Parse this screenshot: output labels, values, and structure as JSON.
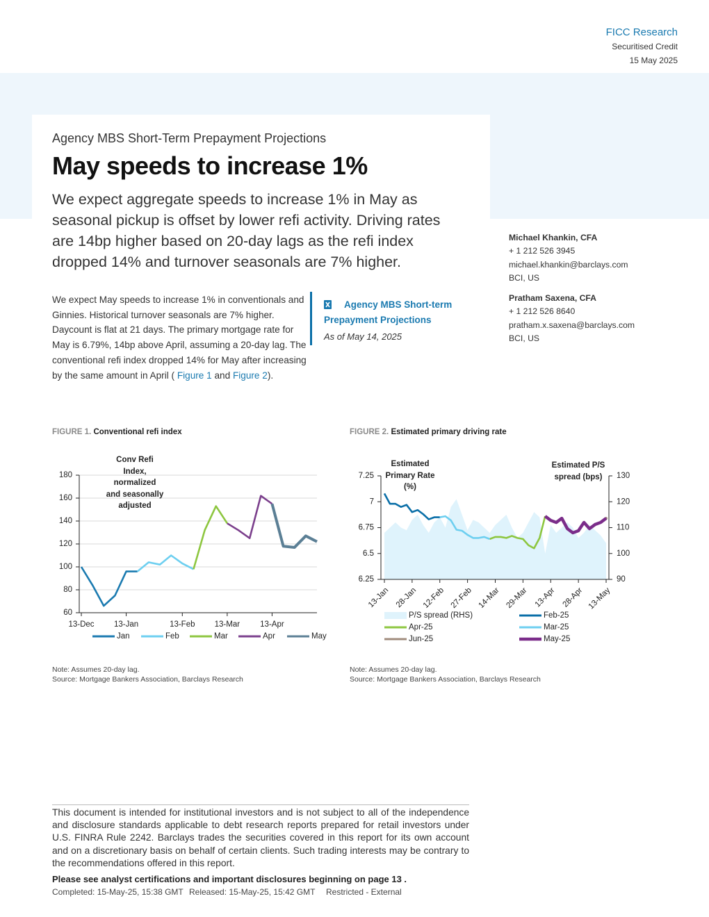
{
  "header": {
    "brand": "FICC Research",
    "section": "Securitised Credit",
    "date": "15 May 2025"
  },
  "article": {
    "kicker": "Agency MBS Short-Term Prepayment Projections",
    "title": "May speeds to increase 1%",
    "summary": "We expect aggregate speeds to increase 1% in May as seasonal pickup is offset by lower refi activity. Driving rates are 14bp higher based on 20-day lags as the refi index dropped 14% and turnover seasonals are 7% higher.",
    "body": [
      "We expect May speeds to increase 1% in conventionals and Ginnies. Historical turnover seasonals are 7% higher. Daycount is flat at 21 days. The primary mortgage rate for May is 6.79%, 14bp above April, assuming a 20-day lag. The conventional refi index dropped 14% for May after increasing by the same amount in April ( ",
      "Figure 1",
      " and ",
      "Figure 2",
      ")."
    ]
  },
  "sidebar": {
    "link": "Agency MBS Short-term Prepayment Projections",
    "as_of": "As of May 14, 2025"
  },
  "authors": [
    {
      "name": "Michael Khankin, CFA",
      "phone": "+ 1 212 526 3945",
      "email": "michael.khankin@barclays.com",
      "entity": "BCI, US"
    },
    {
      "name": "Pratham Saxena, CFA",
      "phone": "+ 1 212 526 8640",
      "email": "pratham.x.saxena@barclays.com",
      "entity": "BCI, US"
    }
  ],
  "chart_data": [
    {
      "type": "line",
      "figure": "FIGURE 1.",
      "title": "Conventional refi index",
      "annotation": "Conv Refi Index, normalized and seasonally adjusted",
      "categories": [
        "13-Dec",
        null,
        null,
        null,
        "13-Jan",
        null,
        null,
        null,
        null,
        "13-Feb",
        null,
        null,
        null,
        "13-Mar",
        null,
        null,
        null,
        "13-Apr",
        null,
        null,
        null,
        null
      ],
      "series": [
        {
          "name": "Jan",
          "color": "#1a7ab0",
          "values": [
            100,
            84,
            66,
            75,
            96,
            96,
            null,
            null,
            null,
            null,
            null,
            null,
            null,
            null,
            null,
            null,
            null,
            null,
            null,
            null,
            null,
            null
          ]
        },
        {
          "name": "Feb",
          "color": "#6dcff0",
          "values": [
            null,
            null,
            null,
            null,
            null,
            96,
            104,
            102,
            110,
            103,
            98,
            null,
            null,
            null,
            null,
            null,
            null,
            null,
            null,
            null,
            null,
            null
          ]
        },
        {
          "name": "Mar",
          "color": "#8dc63f",
          "values": [
            null,
            null,
            null,
            null,
            null,
            null,
            null,
            null,
            null,
            null,
            98,
            132,
            153,
            138,
            null,
            null,
            null,
            null,
            null,
            null,
            null,
            null
          ]
        },
        {
          "name": "Apr",
          "color": "#7b3f8c",
          "values": [
            null,
            null,
            null,
            null,
            null,
            null,
            null,
            null,
            null,
            null,
            null,
            null,
            null,
            138,
            132,
            125,
            162,
            155,
            null,
            null,
            null,
            null
          ]
        },
        {
          "name": "May",
          "color": "#5b7f95",
          "values": [
            null,
            null,
            null,
            null,
            null,
            null,
            null,
            null,
            null,
            null,
            null,
            null,
            null,
            null,
            null,
            null,
            null,
            155,
            118,
            117,
            127,
            122
          ]
        }
      ],
      "ylim": [
        60,
        180
      ],
      "yticks": [
        60,
        80,
        100,
        120,
        140,
        160,
        180
      ],
      "grid": true,
      "legend": "bottom",
      "notes": [
        "Note: Assumes 20-day lag.",
        "Source: Mortgage Bankers Association, Barclays Research"
      ]
    },
    {
      "type": "line",
      "figure": "FIGURE 2.",
      "title": "Estimated primary driving rate",
      "ylabel": "Estimated Primary Rate (%)",
      "y2label": "Estimated P/S spread (bps)",
      "categories": [
        "13-Jan",
        null,
        null,
        null,
        null,
        "28-Jan",
        null,
        null,
        null,
        null,
        "12-Feb",
        null,
        null,
        null,
        null,
        "27-Feb",
        null,
        null,
        null,
        null,
        "14-Mar",
        null,
        null,
        null,
        null,
        "29-Mar",
        null,
        null,
        null,
        null,
        "13-Apr",
        null,
        null,
        null,
        null,
        "28-Apr",
        null,
        null,
        null,
        null,
        "13-May"
      ],
      "series": [
        {
          "name": "P/S spread (RHS)",
          "color": "#dff3fc",
          "style": "area",
          "axis": "y2",
          "values": [
            108,
            110,
            112,
            110,
            109,
            113,
            115,
            111,
            108,
            112,
            114,
            110,
            118,
            121,
            115,
            109,
            113,
            112,
            110,
            108,
            111,
            113,
            115,
            110,
            106,
            108,
            112,
            116,
            114,
            100,
            111,
            108,
            110,
            112,
            110,
            106,
            108,
            111,
            109,
            107,
            104
          ]
        },
        {
          "name": "Feb-25",
          "color": "#0a6fa8",
          "values": [
            7.08,
            6.98,
            6.98,
            6.95,
            6.97,
            6.9,
            6.92,
            6.88,
            6.83,
            6.85,
            6.85,
            null,
            null,
            null,
            null,
            null,
            null,
            null,
            null,
            null,
            null,
            null,
            null,
            null,
            null,
            null,
            null,
            null,
            null,
            null,
            null,
            null,
            null,
            null,
            null,
            null,
            null,
            null,
            null,
            null,
            null
          ]
        },
        {
          "name": "Apr-25",
          "color": "#8dc63f",
          "values": [
            null,
            null,
            null,
            null,
            null,
            null,
            null,
            null,
            null,
            null,
            null,
            null,
            null,
            null,
            null,
            null,
            null,
            null,
            null,
            6.64,
            6.66,
            6.66,
            6.65,
            6.67,
            6.65,
            6.64,
            6.58,
            6.55,
            6.65,
            6.86,
            null,
            null,
            null,
            null,
            null,
            null,
            null,
            null,
            null,
            null,
            null
          ]
        },
        {
          "name": "Mar-25",
          "color": "#6dcff0",
          "values": [
            null,
            null,
            null,
            null,
            null,
            null,
            null,
            null,
            null,
            null,
            6.85,
            6.86,
            6.82,
            6.73,
            6.72,
            6.68,
            6.65,
            6.65,
            6.66,
            6.64,
            null,
            null,
            null,
            null,
            null,
            null,
            null,
            null,
            null,
            null,
            null,
            null,
            null,
            null,
            null,
            null,
            null,
            null,
            null,
            null,
            null
          ]
        },
        {
          "name": "Jun-25",
          "color": "#a08c7d",
          "values": [
            null,
            null,
            null,
            null,
            null,
            null,
            null,
            null,
            null,
            null,
            null,
            null,
            null,
            null,
            null,
            null,
            null,
            null,
            null,
            null,
            null,
            null,
            null,
            null,
            null,
            null,
            null,
            null,
            null,
            null,
            null,
            null,
            null,
            null,
            null,
            null,
            null,
            null,
            null,
            null,
            6.84
          ]
        },
        {
          "name": "May-25",
          "color": "#7b2d8a",
          "values": [
            null,
            null,
            null,
            null,
            null,
            null,
            null,
            null,
            null,
            null,
            null,
            null,
            null,
            null,
            null,
            null,
            null,
            null,
            null,
            null,
            null,
            null,
            null,
            null,
            null,
            null,
            null,
            null,
            null,
            6.86,
            6.82,
            6.8,
            6.84,
            6.74,
            6.7,
            6.72,
            6.8,
            6.74,
            6.78,
            6.8,
            6.84
          ]
        }
      ],
      "ylim": [
        6.25,
        7.25
      ],
      "yticks": [
        6.25,
        6.5,
        6.75,
        7,
        7.25
      ],
      "y2lim": [
        90,
        130
      ],
      "y2ticks": [
        90,
        100,
        110,
        120,
        130
      ],
      "grid": false,
      "legend": "bottom",
      "notes": [
        "Note: Assumes 20-day lag.",
        "Source: Mortgage Bankers Association, Barclays Research"
      ]
    }
  ],
  "footer": {
    "disclaimer": "This document is intended for institutional investors and is not subject to all of the independence and disclosure standards applicable to debt research reports prepared for retail investors under U.S. FINRA Rule 2242. Barclays trades the securities covered in this report for its own account and on a discretionary basis on behalf of certain clients. Such trading interests may be contrary to the recommendations offered in this report.",
    "disclosure": "Please see analyst certifications and important disclosures beginning on page 13 .",
    "completed": "Completed: 15-May-25, 15:38 GMT",
    "released": "Released: 15-May-25, 15:42 GMT",
    "classification": "Restricted - External"
  }
}
